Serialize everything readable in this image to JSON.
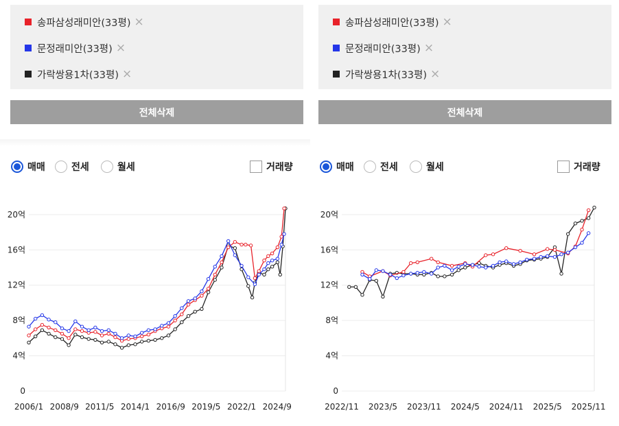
{
  "panels": [
    {
      "legend": [
        {
          "label": "송파삼성래미안(33평)",
          "color": "#e8222a"
        },
        {
          "label": "문정래미안(33평)",
          "color": "#2436e8"
        },
        {
          "label": "가락쌍용1차(33평)",
          "color": "#222222"
        }
      ],
      "remove_icon": "×",
      "clear_button": "전체삭제",
      "radio_options": [
        {
          "label": "매매",
          "checked": true
        },
        {
          "label": "전세",
          "checked": false
        },
        {
          "label": "월세",
          "checked": false
        }
      ],
      "volume_checkbox": {
        "label": "거래량",
        "checked": false
      }
    },
    {
      "legend": [
        {
          "label": "송파삼성래미안(33평)",
          "color": "#e8222a"
        },
        {
          "label": "문정래미안(33평)",
          "color": "#2436e8"
        },
        {
          "label": "가락쌍용1차(33평)",
          "color": "#222222"
        }
      ],
      "remove_icon": "×",
      "clear_button": "전체삭제",
      "radio_options": [
        {
          "label": "매매",
          "checked": true
        },
        {
          "label": "전세",
          "checked": false
        },
        {
          "label": "월세",
          "checked": false
        }
      ],
      "volume_checkbox": {
        "label": "거래량",
        "checked": false
      }
    }
  ],
  "chart_data": [
    {
      "type": "line",
      "y_ticks": [
        "0",
        "4억",
        "8억",
        "12억",
        "16억",
        "20억"
      ],
      "y_tick_values": [
        0,
        4,
        8,
        12,
        16,
        20
      ],
      "ylim": [
        0,
        21
      ],
      "x_ticks": [
        "2006/1",
        "2008/9",
        "2011/5",
        "2014/1",
        "2016/9",
        "2019/5",
        "2022/1",
        "2024/9"
      ],
      "x_tick_values": [
        2006.0,
        2008.67,
        2011.33,
        2014.0,
        2016.67,
        2019.33,
        2022.0,
        2024.67
      ],
      "xlim": [
        2006.0,
        2025.3
      ],
      "grid": true,
      "series": [
        {
          "name": "송파삼성래미안(33평)",
          "color": "#e8222a",
          "x": [
            2006.0,
            2006.5,
            2007.0,
            2007.5,
            2008.0,
            2008.5,
            2009.0,
            2009.5,
            2010.0,
            2010.5,
            2011.0,
            2011.5,
            2012.0,
            2012.5,
            2013.0,
            2013.5,
            2014.0,
            2014.5,
            2015.0,
            2015.5,
            2016.0,
            2016.5,
            2017.0,
            2017.5,
            2018.0,
            2018.5,
            2019.0,
            2019.5,
            2020.0,
            2020.5,
            2021.0,
            2021.5,
            2022.0,
            2022.3,
            2022.7,
            2023.0,
            2023.3,
            2023.7,
            2024.0,
            2024.3,
            2024.7,
            2025.0,
            2025.2
          ],
          "values": [
            6.3,
            7.0,
            7.5,
            7.2,
            6.9,
            6.5,
            6.0,
            7.0,
            6.8,
            6.6,
            6.7,
            6.3,
            6.5,
            6.1,
            5.7,
            5.9,
            6.0,
            6.2,
            6.4,
            6.8,
            7.1,
            7.3,
            8.0,
            8.7,
            9.8,
            10.3,
            10.8,
            11.6,
            13.2,
            14.6,
            16.3,
            16.9,
            16.6,
            16.6,
            16.5,
            12.8,
            13.6,
            14.8,
            15.3,
            15.6,
            16.3,
            17.5,
            20.7
          ]
        },
        {
          "name": "문정래미안(33평)",
          "color": "#2436e8",
          "x": [
            2006.0,
            2006.5,
            2007.0,
            2007.5,
            2008.0,
            2008.5,
            2009.0,
            2009.5,
            2010.0,
            2010.5,
            2011.0,
            2011.5,
            2012.0,
            2012.5,
            2013.0,
            2013.5,
            2014.0,
            2014.5,
            2015.0,
            2015.5,
            2016.0,
            2016.5,
            2017.0,
            2017.5,
            2018.0,
            2018.5,
            2019.0,
            2019.5,
            2020.0,
            2020.5,
            2021.0,
            2021.5,
            2022.0,
            2022.5,
            2023.0,
            2023.3,
            2023.7,
            2024.0,
            2024.3,
            2024.7,
            2025.0,
            2025.2
          ],
          "values": [
            7.3,
            8.2,
            8.6,
            8.1,
            7.8,
            7.1,
            6.8,
            7.9,
            7.3,
            6.9,
            7.2,
            6.8,
            6.9,
            6.5,
            6.0,
            6.3,
            6.2,
            6.6,
            6.9,
            7.0,
            7.4,
            7.7,
            8.5,
            9.4,
            10.2,
            10.5,
            11.3,
            12.7,
            14.1,
            15.3,
            17.0,
            15.4,
            14.2,
            12.9,
            12.1,
            13.2,
            13.8,
            14.5,
            14.8,
            15.0,
            16.6,
            17.8
          ]
        },
        {
          "name": "가락쌍용1차(33평)",
          "color": "#222222",
          "x": [
            2006.0,
            2006.5,
            2007.0,
            2007.5,
            2008.0,
            2008.5,
            2009.0,
            2009.5,
            2010.0,
            2010.5,
            2011.0,
            2011.5,
            2012.0,
            2012.5,
            2013.0,
            2013.5,
            2014.0,
            2014.5,
            2015.0,
            2015.5,
            2016.0,
            2016.5,
            2017.0,
            2017.5,
            2018.0,
            2018.5,
            2019.0,
            2019.5,
            2020.0,
            2020.5,
            2021.0,
            2021.5,
            2022.0,
            2022.5,
            2022.8,
            2023.0,
            2023.3,
            2023.7,
            2024.0,
            2024.3,
            2024.7,
            2024.9,
            2025.1,
            2025.3
          ],
          "values": [
            5.5,
            6.2,
            6.9,
            6.5,
            6.1,
            5.9,
            5.2,
            6.4,
            6.1,
            5.9,
            5.8,
            5.5,
            5.6,
            5.3,
            4.9,
            5.2,
            5.3,
            5.6,
            5.7,
            5.8,
            6.0,
            6.3,
            7.0,
            7.8,
            8.5,
            9.0,
            9.3,
            11.2,
            12.6,
            14.0,
            16.5,
            16.2,
            13.8,
            11.9,
            10.6,
            12.3,
            13.4,
            13.2,
            13.8,
            14.1,
            14.6,
            13.2,
            16.4,
            20.7
          ]
        }
      ]
    },
    {
      "type": "line",
      "y_ticks": [
        "0",
        "4억",
        "8억",
        "12억",
        "16억",
        "20억"
      ],
      "y_tick_values": [
        0,
        4,
        8,
        12,
        16,
        20
      ],
      "ylim": [
        0,
        21
      ],
      "x_ticks": [
        "2022/11",
        "2023/5",
        "2023/11",
        "2024/5",
        "2024/11",
        "2025/5",
        "2025/11"
      ],
      "x_tick_values": [
        2022.83,
        2023.33,
        2023.83,
        2024.33,
        2024.83,
        2025.33,
        2025.83
      ],
      "xlim": [
        2022.83,
        2025.9
      ],
      "grid": true,
      "series": [
        {
          "name": "송파삼성래미안(33평)",
          "color": "#e8222a",
          "x": [
            2023.08,
            2023.17,
            2023.33,
            2023.42,
            2023.58,
            2023.67,
            2023.75,
            2023.92,
            2024.0,
            2024.17,
            2024.33,
            2024.42,
            2024.58,
            2024.67,
            2024.83,
            2025.0,
            2025.17,
            2025.33,
            2025.42,
            2025.58,
            2025.67,
            2025.75,
            2025.83
          ],
          "values": [
            13.5,
            13.0,
            13.6,
            13.1,
            13.5,
            14.5,
            14.6,
            15.0,
            14.6,
            14.2,
            14.5,
            14.1,
            15.4,
            15.5,
            16.2,
            15.9,
            15.5,
            16.1,
            16.0,
            15.6,
            16.4,
            18.3,
            20.5
          ]
        },
        {
          "name": "문정래미안(33평)",
          "color": "#2436e8",
          "x": [
            2023.08,
            2023.17,
            2023.25,
            2023.33,
            2023.42,
            2023.5,
            2023.58,
            2023.67,
            2023.75,
            2023.83,
            2023.92,
            2024.0,
            2024.08,
            2024.17,
            2024.25,
            2024.33,
            2024.42,
            2024.5,
            2024.58,
            2024.67,
            2024.75,
            2024.83,
            2024.92,
            2025.0,
            2025.08,
            2025.17,
            2025.25,
            2025.33,
            2025.42,
            2025.5,
            2025.58,
            2025.67,
            2025.75,
            2025.83
          ],
          "values": [
            13.2,
            12.7,
            13.7,
            13.6,
            13.2,
            12.8,
            13.1,
            13.3,
            13.4,
            13.5,
            13.3,
            14.0,
            14.2,
            13.7,
            14.1,
            14.4,
            14.3,
            14.1,
            14.0,
            14.2,
            14.6,
            14.7,
            14.4,
            14.6,
            14.9,
            15.0,
            15.2,
            15.3,
            15.2,
            15.5,
            15.7,
            16.3,
            16.8,
            17.9
          ]
        },
        {
          "name": "가락쌍용1차(33평)",
          "color": "#222222",
          "x": [
            2022.92,
            2023.0,
            2023.08,
            2023.17,
            2023.25,
            2023.33,
            2023.42,
            2023.5,
            2023.58,
            2023.67,
            2023.75,
            2023.83,
            2023.92,
            2024.0,
            2024.08,
            2024.17,
            2024.25,
            2024.33,
            2024.42,
            2024.5,
            2024.58,
            2024.67,
            2024.75,
            2024.83,
            2024.92,
            2025.0,
            2025.08,
            2025.17,
            2025.25,
            2025.33,
            2025.42,
            2025.5,
            2025.58,
            2025.67,
            2025.75,
            2025.83,
            2025.9
          ],
          "values": [
            11.8,
            11.8,
            10.9,
            12.6,
            12.5,
            10.7,
            13.3,
            13.4,
            13.3,
            13.3,
            13.2,
            13.2,
            13.4,
            13.0,
            13.0,
            13.2,
            13.7,
            14.0,
            14.3,
            14.5,
            14.2,
            14.0,
            14.3,
            14.5,
            14.2,
            14.4,
            14.8,
            14.9,
            15.0,
            15.2,
            16.3,
            13.3,
            17.8,
            19.0,
            19.3,
            19.6,
            20.8
          ]
        }
      ]
    }
  ]
}
